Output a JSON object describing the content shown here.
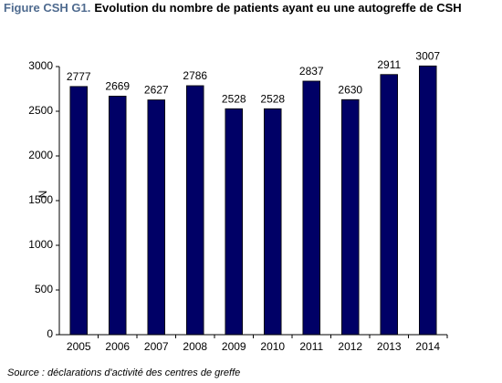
{
  "chart_data": {
    "type": "bar",
    "title_prefix": "Figure CSH G1.",
    "title": "Evolution du nombre de patients ayant eu une autogreffe de CSH",
    "y_label": "N",
    "source": "Source : déclarations d'activité des centres de greffe",
    "categories": [
      "2005",
      "2006",
      "2007",
      "2008",
      "2009",
      "2010",
      "2011",
      "2012",
      "2013",
      "2014"
    ],
    "values": [
      2777,
      2669,
      2627,
      2786,
      2528,
      2528,
      2837,
      2630,
      2911,
      3007
    ],
    "color": "#000066",
    "ylim": [
      0,
      3000
    ],
    "yticks": [
      0,
      500,
      1000,
      1500,
      2000,
      2500,
      3000
    ]
  }
}
